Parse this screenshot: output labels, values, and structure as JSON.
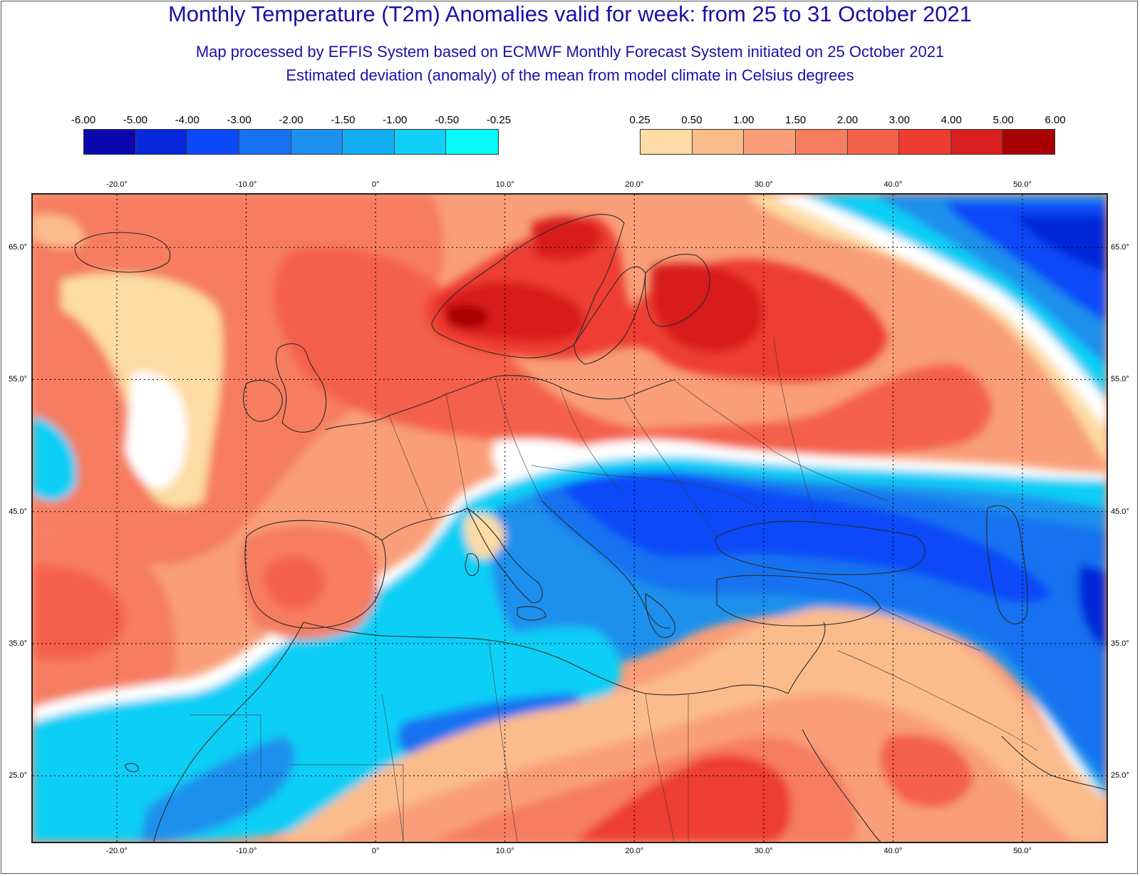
{
  "header": {
    "title": "Monthly Temperature (T2m) Anomalies valid for week: from 25 to 31 October 2021",
    "subtitle1": "Map processed by EFFIS System based on ECMWF Monthly Forecast System initiated on 25 October 2021",
    "subtitle2": "Estimated deviation (anomaly) of the mean from model climate in Celsius degrees"
  },
  "legend_negative": {
    "labels": [
      "-6.00",
      "-5.00",
      "-4.00",
      "-3.00",
      "-2.00",
      "-1.50",
      "-1.00",
      "-0.50",
      "-0.25"
    ],
    "colors": [
      "#0a08ad",
      "#0628d8",
      "#0a48f8",
      "#1672f0",
      "#1c90ec",
      "#14aff2",
      "#10cff6",
      "#08f8fa"
    ]
  },
  "legend_positive": {
    "labels": [
      "0.25",
      "0.50",
      "1.00",
      "1.50",
      "2.00",
      "3.00",
      "4.00",
      "5.00",
      "6.00"
    ],
    "colors": [
      "#fcdba4",
      "#fbbc8c",
      "#f99e78",
      "#f67d60",
      "#f46149",
      "#ee3d30",
      "#d81e1e",
      "#a90006"
    ]
  },
  "map": {
    "lon_labels": [
      "-20.0°",
      "-10.0°",
      "0°",
      "10.0°",
      "20.0°",
      "30.0°",
      "40.0°",
      "50.0°"
    ],
    "lat_labels": [
      "65.0°",
      "55.0°",
      "45.0°",
      "35.0°",
      "25.0°"
    ],
    "lon_range": [
      -26.5,
      56.5
    ],
    "lat_range": [
      20,
      69
    ]
  }
}
